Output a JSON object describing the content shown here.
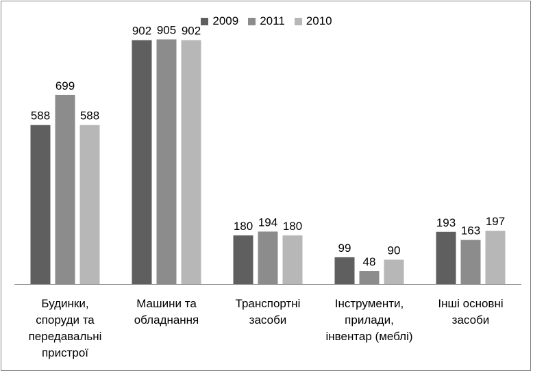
{
  "chart_data": {
    "type": "bar",
    "categories": [
      [
        "Будинки,",
        "споруди та",
        "передавальні",
        "пристрої"
      ],
      [
        "Машини та",
        "обладнання"
      ],
      [
        "Транспортні",
        "засоби"
      ],
      [
        "Інструменти,",
        "прилади,",
        "інвентар (меблі)"
      ],
      [
        "Інші основні",
        "засоби"
      ]
    ],
    "series": [
      {
        "name": "2009",
        "color": "#5f5f5f",
        "values": [
          588,
          902,
          180,
          99,
          193
        ]
      },
      {
        "name": "2011",
        "color": "#8c8c8c",
        "values": [
          699,
          905,
          194,
          48,
          163
        ]
      },
      {
        "name": "2010",
        "color": "#b7b7b7",
        "values": [
          588,
          902,
          180,
          90,
          197
        ]
      }
    ],
    "ylim": [
      0,
      1000
    ],
    "legend_position": "top",
    "grid": false,
    "axis_color": "#868686"
  }
}
